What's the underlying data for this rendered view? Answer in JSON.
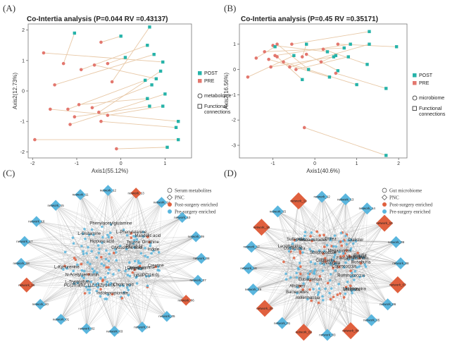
{
  "panels": {
    "A": {
      "letter": "(A)",
      "title": "Co-Intertia analysis (P=0.044 RV =0.43137)"
    },
    "B": {
      "letter": "(B)",
      "title": "Co-Intertia analysis (P=0.45 RV =0.35171)"
    },
    "C": {
      "letter": "(C)"
    },
    "D": {
      "letter": "(D)"
    }
  },
  "colors": {
    "post": "#26b3a9",
    "pre": "#e3776e",
    "edge": "#e8c8a6",
    "node_blue": "#5ab6de",
    "node_red": "#e0603e",
    "grey_edge": "#8a8a8a"
  },
  "chart_data": [
    {
      "panel": "A",
      "type": "scatter",
      "title": "Co-Intertia analysis (P=0.044 RV =0.43137)",
      "xlabel": "Axis1(55.12%)",
      "ylabel": "Axis2(12.73%)",
      "xlim": [
        -2.1,
        1.6
      ],
      "ylim": [
        -2.2,
        2.2
      ],
      "xticks": [
        -2,
        -1,
        0,
        1
      ],
      "yticks": [
        -2,
        -1,
        0,
        1,
        2
      ],
      "legend": {
        "entries": [
          "POST",
          "PRE"
        ],
        "extra": [
          "metabolome",
          "Functional connections"
        ]
      },
      "links": [
        {
          "pre": [
            -1.3,
            0.9
          ],
          "post": [
            -1.05,
            1.9
          ]
        },
        {
          "pre": [
            -0.45,
            1.6
          ],
          "post": [
            0.0,
            1.8
          ]
        },
        {
          "pre": [
            -0.3,
            0.9
          ],
          "post": [
            0.1,
            1.1
          ]
        },
        {
          "pre": [
            -0.9,
            0.7
          ],
          "post": [
            0.6,
            1.5
          ]
        },
        {
          "pre": [
            -1.5,
            0.2
          ],
          "post": [
            0.75,
            1.2
          ]
        },
        {
          "pre": [
            -1.75,
            1.25
          ],
          "post": [
            0.95,
            0.95
          ]
        },
        {
          "pre": [
            -1.2,
            -0.6
          ],
          "post": [
            0.55,
            0.35
          ]
        },
        {
          "pre": [
            -0.95,
            -0.45
          ],
          "post": [
            0.6,
            -0.25
          ]
        },
        {
          "pre": [
            -0.65,
            -0.55
          ],
          "post": [
            0.7,
            0.2
          ]
        },
        {
          "pre": [
            -0.5,
            -0.7
          ],
          "post": [
            0.9,
            0.65
          ]
        },
        {
          "pre": [
            -1.15,
            -1.1
          ],
          "post": [
            1.0,
            -0.1
          ]
        },
        {
          "pre": [
            -0.3,
            -0.8
          ],
          "post": [
            0.95,
            -0.5
          ]
        },
        {
          "pre": [
            -1.6,
            -0.6
          ],
          "post": [
            1.3,
            -1.0
          ]
        },
        {
          "pre": [
            -0.45,
            -1.0
          ],
          "post": [
            1.25,
            -1.2
          ]
        },
        {
          "pre": [
            -1.95,
            -1.6
          ],
          "post": [
            1.3,
            -1.6
          ]
        },
        {
          "pre": [
            -0.1,
            -1.9
          ],
          "post": [
            1.05,
            -1.85
          ]
        },
        {
          "pre": [
            -1.05,
            -0.85
          ],
          "post": [
            0.65,
            -0.5
          ]
        },
        {
          "pre": [
            -0.2,
            0.3
          ],
          "post": [
            0.65,
            2.1
          ]
        },
        {
          "pre": [
            -0.6,
            0.85
          ],
          "post": [
            0.8,
            0.4
          ]
        }
      ]
    },
    {
      "panel": "B",
      "type": "scatter",
      "title": "Co-Intertia analysis (P=0.45 RV =0.35171)",
      "xlabel": "Axis1(40.6%)",
      "ylabel": "Axis2(16.56%)",
      "xlim": [
        -1.8,
        2.2
      ],
      "ylim": [
        -3.5,
        1.8
      ],
      "xticks": [
        -1,
        0,
        1,
        2
      ],
      "yticks": [
        -3,
        -2,
        -1,
        0,
        1
      ],
      "legend": {
        "entries": [
          "POST",
          "PRE"
        ],
        "extra": [
          "microbiome",
          "Functional connections"
        ]
      },
      "links": [
        {
          "pre": [
            -0.55,
            1.0
          ],
          "post": [
            1.3,
            1.5
          ]
        },
        {
          "pre": [
            -0.3,
            0.5
          ],
          "post": [
            -0.2,
            1.0
          ]
        },
        {
          "pre": [
            -0.95,
            0.55
          ],
          "post": [
            0.85,
            1.0
          ]
        },
        {
          "pre": [
            -0.6,
            0.1
          ],
          "post": [
            1.3,
            1.0
          ]
        },
        {
          "pre": [
            -1.0,
            0.95
          ],
          "post": [
            0.3,
            0.7
          ]
        },
        {
          "pre": [
            -1.2,
            0.7
          ],
          "post": [
            0.7,
            0.85
          ]
        },
        {
          "pre": [
            -0.9,
            1.0
          ],
          "post": [
            -0.15,
            0.0
          ]
        },
        {
          "pre": [
            -1.1,
            0.4
          ],
          "post": [
            0.35,
            -0.3
          ]
        },
        {
          "pre": [
            -0.75,
            0.3
          ],
          "post": [
            1.0,
            -0.6
          ]
        },
        {
          "pre": [
            -0.2,
            0.6
          ],
          "post": [
            0.55,
            -0.05
          ]
        },
        {
          "pre": [
            0.2,
            0.8
          ],
          "post": [
            1.25,
            0.2
          ]
        },
        {
          "pre": [
            -1.4,
            0.45
          ],
          "post": [
            -0.95,
            0.9
          ]
        },
        {
          "pre": [
            0.15,
            0.3
          ],
          "post": [
            0.5,
            0.55
          ]
        },
        {
          "pre": [
            -0.45,
            0.0
          ],
          "post": [
            0.8,
            0.5
          ]
        },
        {
          "pre": [
            -1.6,
            -0.3
          ],
          "post": [
            -0.5,
            0.55
          ]
        },
        {
          "pre": [
            0.55,
            1.0
          ],
          "post": [
            1.95,
            0.9
          ]
        },
        {
          "pre": [
            -0.25,
            -2.3
          ],
          "post": [
            1.7,
            -3.4
          ]
        },
        {
          "pre": [
            -0.9,
            0.5
          ],
          "post": [
            -0.3,
            -0.4
          ]
        },
        {
          "pre": [
            -1.05,
            0.1
          ],
          "post": [
            0.45,
            0.5
          ]
        },
        {
          "pre": [
            0.5,
            -0.15
          ],
          "post": [
            1.7,
            -0.75
          ]
        }
      ]
    }
  ],
  "networkC": {
    "legend": [
      "Serum metabolites",
      "PNC",
      "Post-surgery enriched",
      "Pre-surgery enriched"
    ],
    "network_labels": [
      "network_11",
      "network_12",
      "network_13",
      "network_14",
      "network_10",
      "network_09",
      "network_08",
      "network_07",
      "network_06",
      "network_05",
      "network_04",
      "network_03",
      "network_02",
      "network_01",
      "network_20",
      "network_19",
      "network_18",
      "network_17",
      "network_16",
      "network_15"
    ],
    "inner_labels": [
      "Mandelic acid",
      "Glycocholic acid",
      "L-Tryptophan",
      "PC(20:3(8Z,11Z,14Z)/14:0)",
      "L-Glutamine",
      "Indolepropionate",
      "Creatine",
      "Ornithine",
      "L-Phenylalanine",
      "Hippuric acid",
      "N-Acetylserotonin",
      "PE(18:1)",
      "LysoPC(16:0)",
      "Taurine",
      "Cholic acid",
      "Indole",
      "L-Arginine",
      "L-Kynurenine",
      "Dimethylamine",
      "Phenylacetylglutamine"
    ]
  },
  "networkD": {
    "legend": [
      "Gut microbiome",
      "PNC",
      "Post-surgery enriched",
      "Pre-surgery enriched"
    ],
    "network_labels": [
      "network_11",
      "network_12",
      "network_13",
      "network_14",
      "network_10",
      "network_09",
      "network_08",
      "network_07",
      "network_06",
      "network_05",
      "network_04",
      "network_03",
      "network_02",
      "network_01",
      "network_20",
      "network_19",
      "network_18",
      "network_17",
      "network_16",
      "network_15"
    ],
    "inner_labels": [
      "Bacteroides",
      "Ruminococcus",
      "Prevotella",
      "Faecalibacterium",
      "Roseburia",
      "Blautia",
      "Dorea",
      "Alistipes",
      "Parabacteroides",
      "Oscillospira",
      "Coprococcus",
      "Dialister",
      "Lachnospira",
      "Sutterella",
      "Akkermansia",
      "Bilophila",
      "Veillonella",
      "Streptococcus",
      "Eubacterium",
      "Collinsella",
      "Megamonas",
      "Lactobacillus"
    ]
  }
}
